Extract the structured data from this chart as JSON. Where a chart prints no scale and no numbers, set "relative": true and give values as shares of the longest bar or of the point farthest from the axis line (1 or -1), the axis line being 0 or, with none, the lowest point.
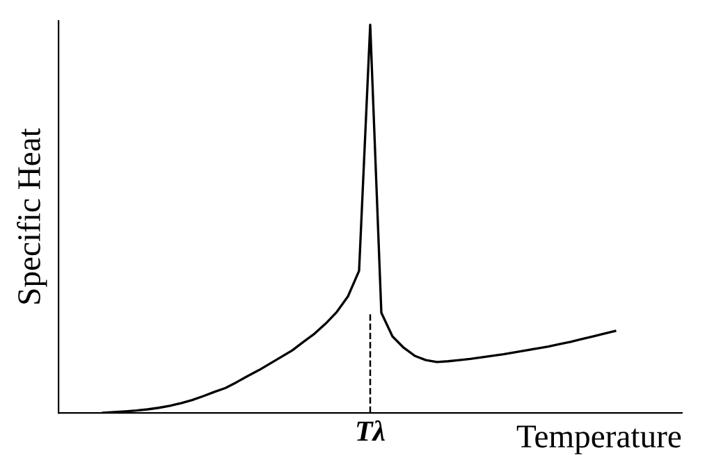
{
  "chart_data": {
    "type": "line",
    "relative": true,
    "xlabel": "Temperature",
    "ylabel": "Specific Heat",
    "categories": [
      null,
      null,
      null,
      null,
      null,
      null,
      null,
      null,
      null,
      null,
      null,
      null,
      null,
      null,
      null,
      null,
      null,
      null,
      null,
      null,
      null,
      null,
      null,
      null,
      null,
      null,
      null,
      null,
      null,
      null,
      null,
      null,
      null,
      null,
      null,
      null,
      null,
      null,
      null,
      null,
      null,
      null,
      null,
      null,
      null,
      null,
      null,
      null,
      null,
      null,
      null
    ],
    "series": [
      {
        "color": "#000000",
        "values": [
          null,
          null,
          null,
          null,
          0,
          0.002,
          0.004,
          0.006,
          0.009,
          0.013,
          0.018,
          0.025,
          0.033,
          0.043,
          0.054,
          0.064,
          0.079,
          0.095,
          0.11,
          0.127,
          0.144,
          0.161,
          0.183,
          0.204,
          0.23,
          0.26,
          0.3,
          0.366,
          1,
          0.258,
          0.197,
          0.168,
          0.147,
          0.136,
          0.131,
          0.133,
          0.136,
          0.139,
          0.143,
          0.147,
          0.151,
          0.156,
          0.161,
          0.166,
          0.171,
          0.177,
          0.183,
          0.19,
          0.197,
          0.204,
          0.211
        ]
      }
    ],
    "ref_lines": [
      {
        "axis": "x",
        "value": "Tλ",
        "line_style": "dashed",
        "color": "#000000"
      }
    ],
    "marker": "none",
    "line_style": "solid"
  }
}
